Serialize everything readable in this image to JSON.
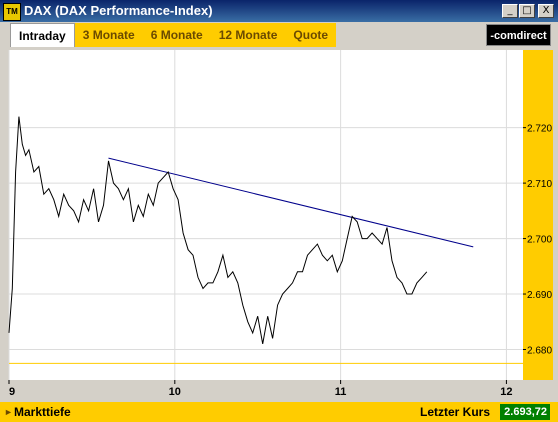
{
  "window": {
    "app_icon": "TM",
    "title": "DAX (DAX Performance-Index)",
    "buttons": {
      "minimize": "_",
      "maximize": "□",
      "close": "X"
    }
  },
  "tabs": [
    {
      "label": "Intraday",
      "active": true
    },
    {
      "label": "3 Monate",
      "active": false
    },
    {
      "label": "6 Monate",
      "active": false
    },
    {
      "label": "12 Monate",
      "active": false
    },
    {
      "label": "Quote",
      "active": false
    }
  ],
  "brand": "-comdirect",
  "colors": {
    "accent_yellow": "#ffcc00",
    "price_line": "#000000",
    "trend_line": "#00008b",
    "reference_line": "#ffcc00",
    "last_price_bg": "#008000"
  },
  "footer": {
    "markttiefe": "Markttiefe",
    "letzter_kurs_label": "Letzter Kurs",
    "letzter_kurs_value": "2.693,72"
  },
  "chart_data": {
    "type": "line",
    "x_ticks": [
      "9",
      "10",
      "11",
      "12"
    ],
    "y_ticks": [
      "2.680",
      "2.690",
      "2.700",
      "2.710",
      "2.720"
    ],
    "xlim": [
      9,
      12.1
    ],
    "ylim": [
      2674.5,
      2734
    ],
    "grid": true,
    "series": [
      {
        "x": [
          9.0,
          9.02,
          9.04,
          9.06,
          9.08,
          9.1,
          9.12,
          9.15,
          9.18,
          9.21,
          9.24,
          9.27,
          9.3,
          9.33,
          9.36,
          9.39,
          9.42,
          9.45,
          9.48,
          9.51,
          9.54,
          9.57,
          9.6,
          9.63,
          9.66,
          9.69,
          9.72,
          9.75,
          9.78,
          9.81,
          9.84,
          9.87,
          9.9,
          9.93,
          9.96,
          9.99,
          10.02,
          10.05,
          10.08,
          10.11,
          10.14,
          10.17,
          10.2,
          10.23,
          10.26,
          10.29,
          10.32,
          10.35,
          10.38,
          10.41,
          10.44,
          10.47,
          10.5,
          10.53,
          10.56,
          10.59,
          10.62,
          10.65,
          10.68,
          10.71,
          10.74,
          10.77,
          10.8,
          10.83,
          10.86,
          10.89,
          10.92,
          10.95,
          10.98,
          11.01,
          11.04,
          11.07,
          11.1,
          11.13,
          11.16,
          11.19,
          11.22,
          11.25,
          11.28,
          11.31,
          11.34,
          11.37,
          11.4,
          11.43,
          11.46,
          11.49,
          11.52
        ],
        "y": [
          2683,
          2691,
          2712,
          2722,
          2717,
          2715,
          2716,
          2712,
          2713,
          2708,
          2709,
          2707,
          2704,
          2708,
          2706,
          2705,
          2703,
          2707,
          2705,
          2709,
          2703,
          2706,
          2714,
          2710,
          2709,
          2707,
          2709,
          2703,
          2706,
          2704,
          2708,
          2706,
          2710,
          2711,
          2712,
          2709,
          2707,
          2701,
          2698,
          2697,
          2693,
          2691,
          2692,
          2692,
          2694,
          2697,
          2693,
          2694,
          2692,
          2688,
          2685,
          2683,
          2686,
          2681,
          2686,
          2682,
          2688,
          2690,
          2691,
          2692,
          2694,
          2694,
          2697,
          2698,
          2699,
          2697,
          2696,
          2697,
          2694,
          2696,
          2700,
          2704,
          2703,
          2700,
          2700,
          2701,
          2700,
          2699,
          2702,
          2696,
          2693,
          2692,
          2690,
          2690,
          2692,
          2693,
          2694
        ]
      }
    ],
    "trendline": {
      "x": [
        9.6,
        11.8
      ],
      "y": [
        2714.5,
        2698.5
      ]
    },
    "reference_y": 2677.5
  }
}
